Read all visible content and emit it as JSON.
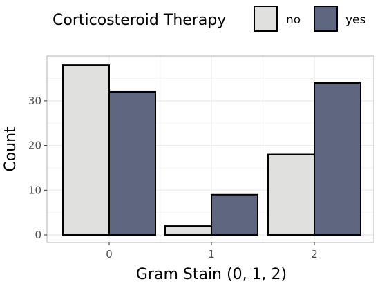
{
  "chart_data": {
    "type": "bar",
    "categories": [
      "0",
      "1",
      "2"
    ],
    "series": [
      {
        "name": "no",
        "values": [
          38,
          2,
          18
        ],
        "color": "#e0e0de"
      },
      {
        "name": "yes",
        "values": [
          32,
          9,
          34
        ],
        "color": "#5f6680"
      }
    ],
    "xlabel": "Gram Stain (0, 1, 2)",
    "ylabel": "Count",
    "ylim": [
      0,
      39.9
    ],
    "yticks": [
      0,
      10,
      20,
      30
    ],
    "grid": true,
    "legend": {
      "title": "Corticosteroid Therapy",
      "position": "top"
    },
    "colors": {
      "panel_border": "#b3b3b3",
      "grid_major": "#ebebeb",
      "grid_minor": "#f5f5f5",
      "bar_outline": "#000000"
    }
  }
}
